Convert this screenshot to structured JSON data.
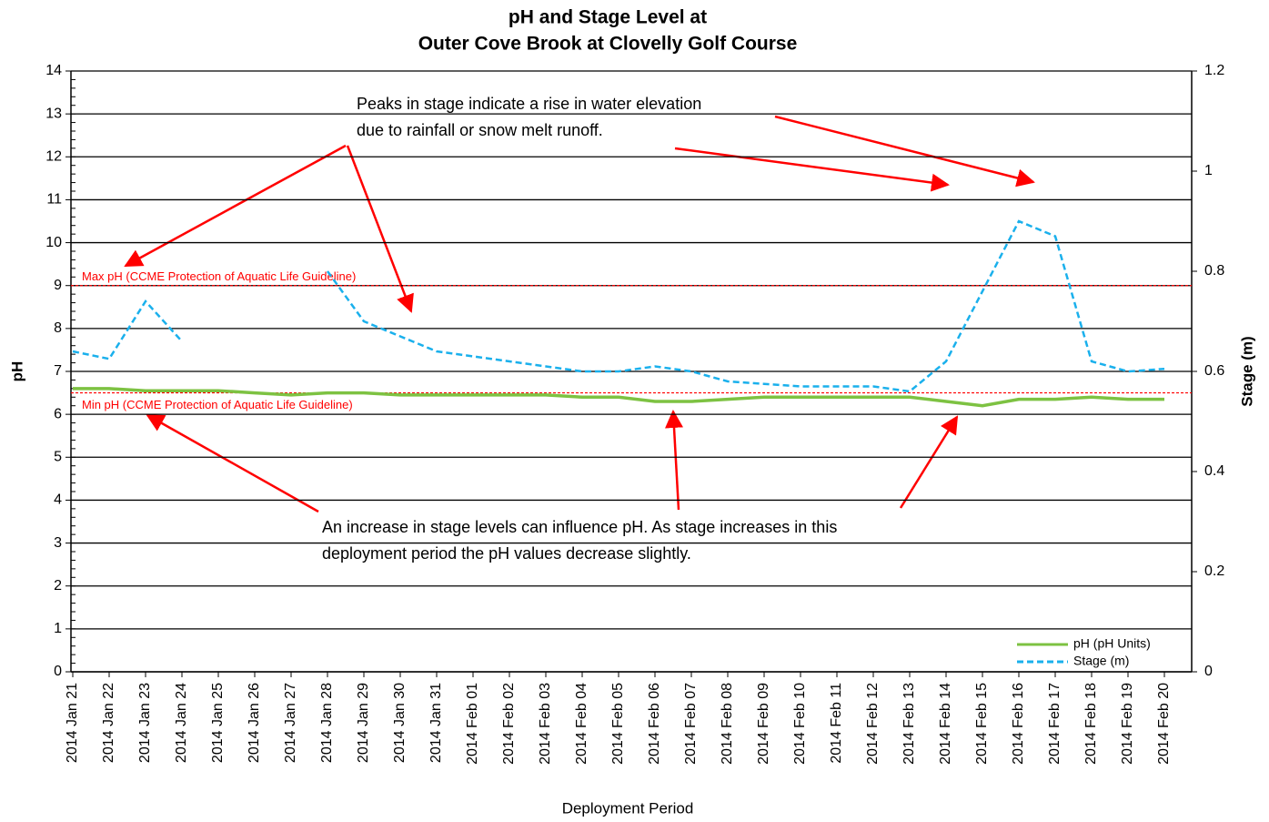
{
  "chart_data": {
    "type": "line",
    "title": [
      "pH and Stage Level at",
      "Outer Cove Brook at Clovelly Golf Course"
    ],
    "xlabel": "Deployment Period",
    "ylabel": "pH",
    "y2label": "Stage (m)",
    "categories": [
      "2014 Jan 21",
      "2014 Jan 22",
      "2014 Jan 23",
      "2014 Jan 24",
      "2014 Jan 25",
      "2014 Jan 26",
      "2014 Jan 27",
      "2014 Jan 28",
      "2014 Jan 29",
      "2014 Jan 30",
      "2014 Jan 31",
      "2014 Feb 01",
      "2014 Feb 02",
      "2014 Feb 03",
      "2014 Feb 04",
      "2014 Feb 05",
      "2014 Feb 06",
      "2014 Feb 07",
      "2014 Feb 08",
      "2014 Feb 09",
      "2014 Feb 10",
      "2014 Feb 11",
      "2014 Feb 12",
      "2014 Feb 13",
      "2014 Feb 14",
      "2014 Feb 15",
      "2014 Feb 16",
      "2014 Feb 17",
      "2014 Feb 18",
      "2014 Feb 19",
      "2014 Feb 20"
    ],
    "series": [
      {
        "name": "pH  (pH Units)",
        "color": "#7dc242",
        "dash": false,
        "axis": "y",
        "values": [
          6.6,
          6.6,
          6.55,
          6.55,
          6.55,
          6.5,
          6.45,
          6.5,
          6.5,
          6.45,
          6.45,
          6.45,
          6.45,
          6.45,
          6.4,
          6.4,
          6.3,
          6.3,
          6.35,
          6.4,
          6.4,
          6.4,
          6.4,
          6.4,
          6.3,
          6.2,
          6.35,
          6.35,
          6.4,
          6.35,
          6.35
        ]
      },
      {
        "name": "Stage (m)",
        "color": "#1ab0ec",
        "dash": true,
        "axis": "y2",
        "values": [
          0.64,
          0.625,
          0.74,
          0.66,
          null,
          null,
          null,
          0.8,
          0.7,
          0.67,
          0.64,
          0.63,
          0.62,
          0.61,
          0.6,
          0.6,
          0.61,
          0.6,
          0.58,
          0.575,
          0.57,
          0.57,
          0.57,
          0.56,
          0.62,
          0.76,
          0.9,
          0.87,
          0.62,
          0.6,
          0.605
        ]
      }
    ],
    "ylim": [
      0,
      14
    ],
    "yticks": [
      0,
      1,
      2,
      3,
      4,
      5,
      6,
      7,
      8,
      9,
      10,
      11,
      12,
      13,
      14
    ],
    "y2lim": [
      0,
      1.2
    ],
    "y2ticks": [
      0,
      0.2,
      0.4,
      0.6,
      0.8,
      1,
      1.2
    ],
    "grid": true,
    "legend": "lower right",
    "reference_lines": [
      {
        "value": 9,
        "label": "Max pH (CCME  Protection of Aquatic Life Guideline)",
        "color": "#ff0000"
      },
      {
        "value": 6.5,
        "label": "Min pH  (CCME  Protection of Aquatic Life Guideline)",
        "color": "#ff0000"
      }
    ],
    "annotations": [
      [
        "Peaks in stage indicate a rise in water elevation",
        "due to rainfall or  snow melt runoff."
      ],
      [
        "An increase in stage levels can influence pH. As stage increases in this",
        "deployment period the pH values decrease slightly."
      ]
    ]
  }
}
